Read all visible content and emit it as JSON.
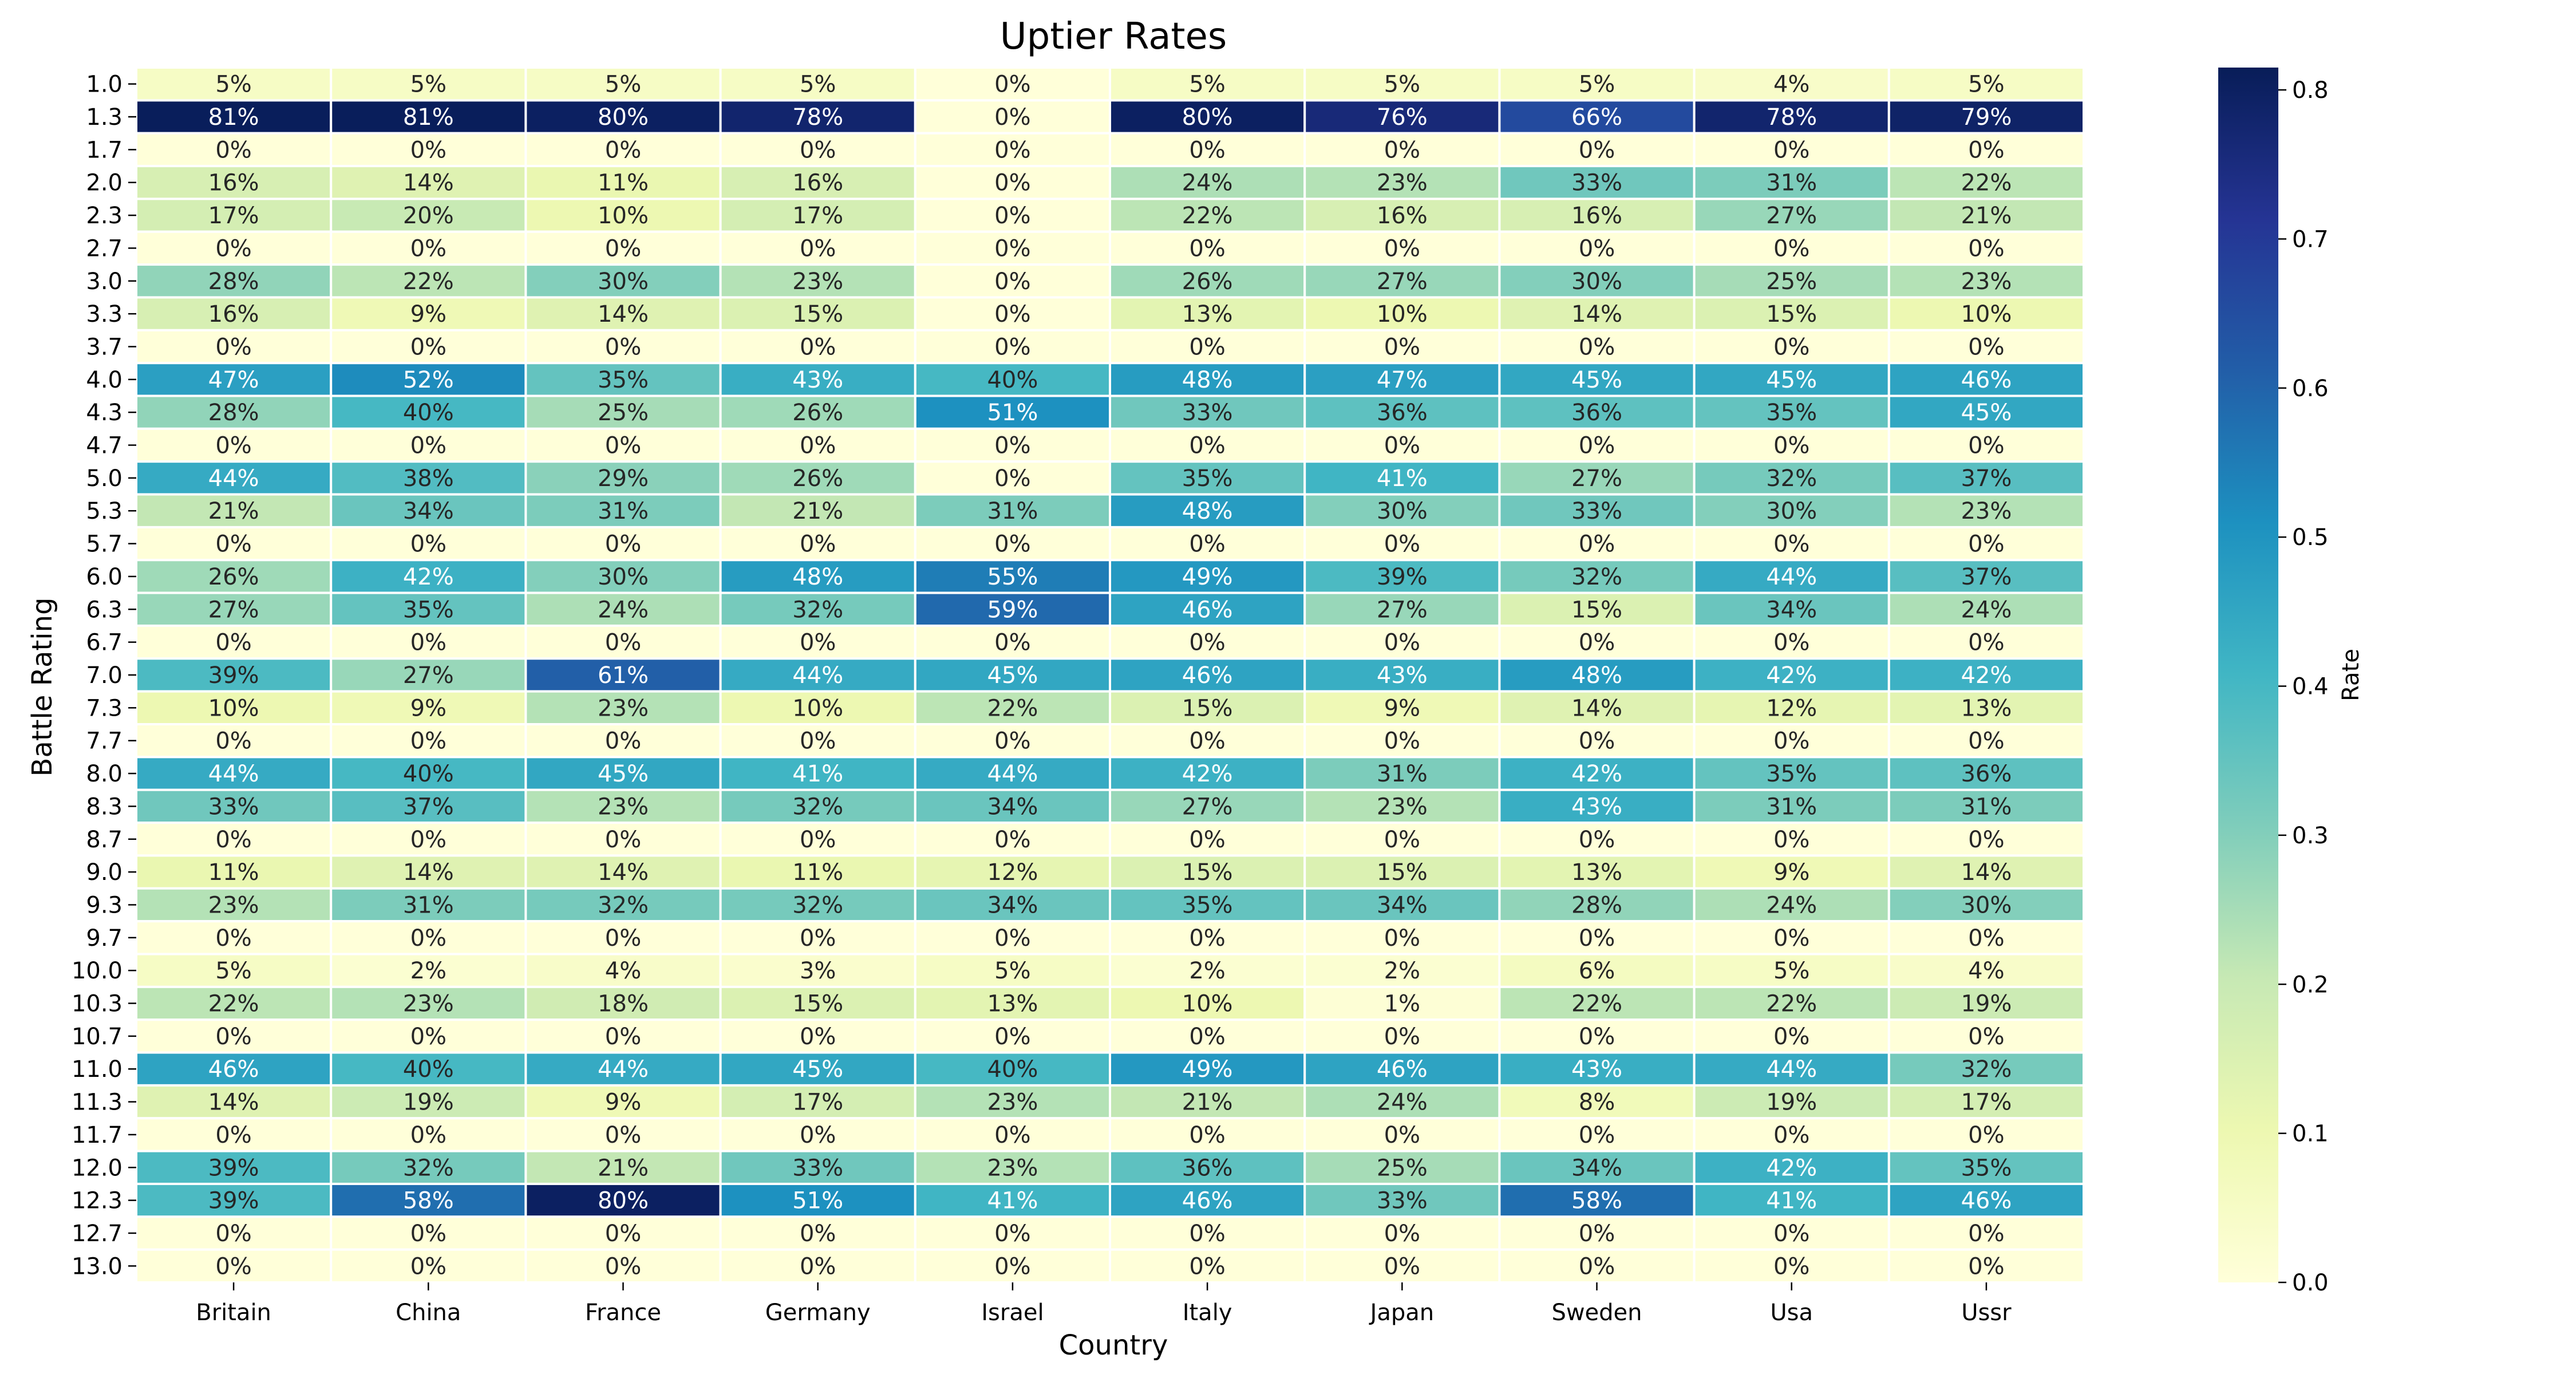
{
  "chart_data": {
    "type": "heatmap",
    "title": "Uptier Rates",
    "xlabel": "Country",
    "ylabel": "Battle Rating",
    "x_categories": [
      "Britain",
      "China",
      "France",
      "Germany",
      "Israel",
      "Italy",
      "Japan",
      "Sweden",
      "Usa",
      "Ussr"
    ],
    "y_categories": [
      "1.0",
      "1.3",
      "1.7",
      "2.0",
      "2.3",
      "2.7",
      "3.0",
      "3.3",
      "3.7",
      "4.0",
      "4.3",
      "4.7",
      "5.0",
      "5.3",
      "5.7",
      "6.0",
      "6.3",
      "6.7",
      "7.0",
      "7.3",
      "7.7",
      "8.0",
      "8.3",
      "8.7",
      "9.0",
      "9.3",
      "9.7",
      "10.0",
      "10.3",
      "10.7",
      "11.0",
      "11.3",
      "11.7",
      "12.0",
      "12.3",
      "12.7",
      "13.0"
    ],
    "values": [
      [
        5,
        5,
        5,
        5,
        0,
        5,
        5,
        5,
        4,
        5
      ],
      [
        81,
        81,
        80,
        78,
        0,
        80,
        76,
        66,
        78,
        79
      ],
      [
        0,
        0,
        0,
        0,
        0,
        0,
        0,
        0,
        0,
        0
      ],
      [
        16,
        14,
        11,
        16,
        0,
        24,
        23,
        33,
        31,
        22
      ],
      [
        17,
        20,
        10,
        17,
        0,
        22,
        16,
        16,
        27,
        21
      ],
      [
        0,
        0,
        0,
        0,
        0,
        0,
        0,
        0,
        0,
        0
      ],
      [
        28,
        22,
        30,
        23,
        0,
        26,
        27,
        30,
        25,
        23
      ],
      [
        16,
        9,
        14,
        15,
        0,
        13,
        10,
        14,
        15,
        10
      ],
      [
        0,
        0,
        0,
        0,
        0,
        0,
        0,
        0,
        0,
        0
      ],
      [
        47,
        52,
        35,
        43,
        40,
        48,
        47,
        45,
        45,
        46
      ],
      [
        28,
        40,
        25,
        26,
        51,
        33,
        36,
        36,
        35,
        45
      ],
      [
        0,
        0,
        0,
        0,
        0,
        0,
        0,
        0,
        0,
        0
      ],
      [
        44,
        38,
        29,
        26,
        0,
        35,
        41,
        27,
        32,
        37
      ],
      [
        21,
        34,
        31,
        21,
        31,
        48,
        30,
        33,
        30,
        23
      ],
      [
        0,
        0,
        0,
        0,
        0,
        0,
        0,
        0,
        0,
        0
      ],
      [
        26,
        42,
        30,
        48,
        55,
        49,
        39,
        32,
        44,
        37
      ],
      [
        27,
        35,
        24,
        32,
        59,
        46,
        27,
        15,
        34,
        24
      ],
      [
        0,
        0,
        0,
        0,
        0,
        0,
        0,
        0,
        0,
        0
      ],
      [
        39,
        27,
        61,
        44,
        45,
        46,
        43,
        48,
        42,
        42
      ],
      [
        10,
        9,
        23,
        10,
        22,
        15,
        9,
        14,
        12,
        13
      ],
      [
        0,
        0,
        0,
        0,
        0,
        0,
        0,
        0,
        0,
        0
      ],
      [
        44,
        40,
        45,
        41,
        44,
        42,
        31,
        42,
        35,
        36
      ],
      [
        33,
        37,
        23,
        32,
        34,
        27,
        23,
        43,
        31,
        31
      ],
      [
        0,
        0,
        0,
        0,
        0,
        0,
        0,
        0,
        0,
        0
      ],
      [
        11,
        14,
        14,
        11,
        12,
        15,
        15,
        13,
        9,
        14
      ],
      [
        23,
        31,
        32,
        32,
        34,
        35,
        34,
        28,
        24,
        30
      ],
      [
        0,
        0,
        0,
        0,
        0,
        0,
        0,
        0,
        0,
        0
      ],
      [
        5,
        2,
        4,
        3,
        5,
        2,
        2,
        6,
        5,
        4
      ],
      [
        22,
        23,
        18,
        15,
        13,
        10,
        1,
        22,
        22,
        19
      ],
      [
        0,
        0,
        0,
        0,
        0,
        0,
        0,
        0,
        0,
        0
      ],
      [
        46,
        40,
        44,
        45,
        40,
        49,
        46,
        43,
        44,
        32
      ],
      [
        14,
        19,
        9,
        17,
        23,
        21,
        24,
        8,
        19,
        17
      ],
      [
        0,
        0,
        0,
        0,
        0,
        0,
        0,
        0,
        0,
        0
      ],
      [
        39,
        32,
        21,
        33,
        23,
        36,
        25,
        34,
        42,
        35
      ],
      [
        39,
        58,
        80,
        51,
        41,
        46,
        33,
        58,
        41,
        46
      ],
      [
        0,
        0,
        0,
        0,
        0,
        0,
        0,
        0,
        0,
        0
      ],
      [
        0,
        0,
        0,
        0,
        0,
        0,
        0,
        0,
        0,
        0
      ]
    ],
    "value_unit": "%",
    "colorbar": {
      "label": "Rate",
      "range": [
        0,
        0.815
      ],
      "ticks": [
        "0.0",
        "0.1",
        "0.2",
        "0.3",
        "0.4",
        "0.5",
        "0.6",
        "0.7",
        "0.8"
      ],
      "tick_values": [
        0,
        0.1,
        0.2,
        0.3,
        0.4,
        0.5,
        0.6,
        0.7,
        0.8
      ],
      "colormap": "YlGnBu"
    }
  }
}
